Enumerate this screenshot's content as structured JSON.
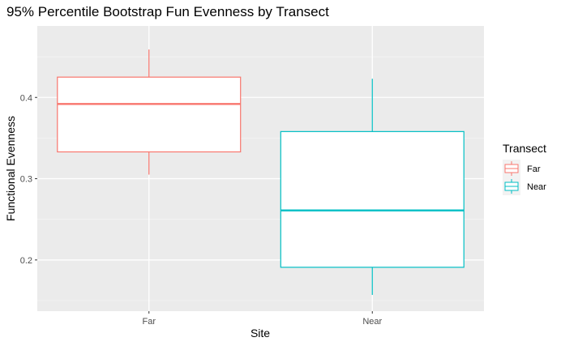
{
  "chart_data": {
    "type": "box",
    "title": "95% Percentile Bootstrap Fun Evenness by Transect",
    "xlabel": "Site",
    "ylabel": "Functional Evenness",
    "categories": [
      "Far",
      "Near"
    ],
    "ylim": [
      0.137,
      0.488
    ],
    "yticks": [
      0.2,
      0.3,
      0.4
    ],
    "ytick_labels": [
      "0.2",
      "0.3",
      "0.4"
    ],
    "grid": true,
    "legend": {
      "title": "Transect",
      "position": "right",
      "entries": [
        {
          "label": "Far",
          "color": "#F8766D"
        },
        {
          "label": "Near",
          "color": "#00BFC4"
        }
      ]
    },
    "series": [
      {
        "name": "Far",
        "category": "Far",
        "color": "#F8766D",
        "whisker_low": 0.305,
        "q1": 0.333,
        "median": 0.392,
        "q3": 0.425,
        "whisker_high": 0.459
      },
      {
        "name": "Near",
        "category": "Near",
        "color": "#00BFC4",
        "whisker_low": 0.157,
        "q1": 0.191,
        "median": 0.261,
        "q3": 0.358,
        "whisker_high": 0.423
      }
    ]
  }
}
